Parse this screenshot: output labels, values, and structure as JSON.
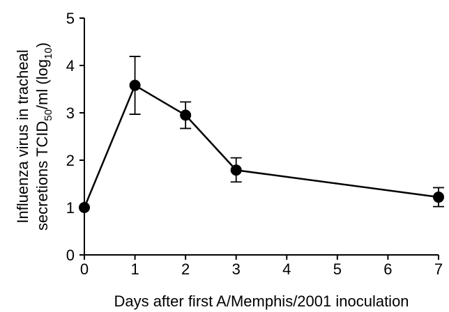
{
  "chart_data": {
    "type": "line",
    "xlabel": "Days after first A/Memphis/2001 inoculation",
    "ylabel_line1": "Influenza virus in tracheal",
    "ylabel_line2_prefix": "secretions TCID",
    "ylabel_line2_sub1": "50",
    "ylabel_line2_mid": "/ml (log",
    "ylabel_line2_sub2": "10",
    "ylabel_line2_suffix": ")",
    "xlim": [
      0,
      7
    ],
    "ylim": [
      0,
      5
    ],
    "xticks": [
      "0",
      "1",
      "2",
      "3",
      "4",
      "5",
      "6",
      "7"
    ],
    "yticks": [
      "0",
      "1",
      "2",
      "3",
      "4",
      "5"
    ],
    "grid": false,
    "series": [
      {
        "x": [
          0,
          1,
          2,
          3,
          7
        ],
        "y": [
          1.0,
          3.58,
          2.95,
          1.79,
          1.22
        ],
        "error_low": [
          null,
          2.97,
          2.67,
          1.54,
          1.02
        ],
        "error_high": [
          null,
          4.19,
          3.23,
          2.05,
          1.42
        ],
        "color": "#000000",
        "marker": "filled-circle"
      }
    ]
  }
}
